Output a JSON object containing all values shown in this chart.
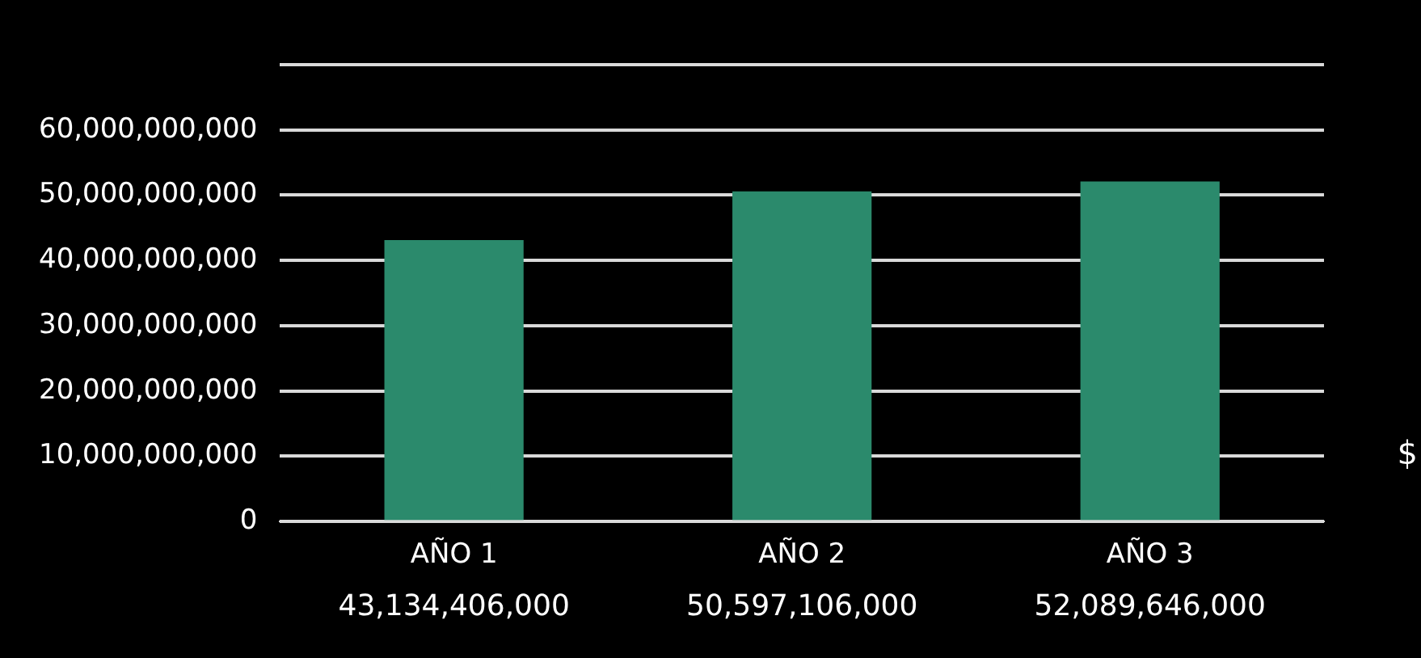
{
  "chart_data": {
    "type": "bar",
    "categories": [
      "AÑO 1",
      "AÑO 2",
      "AÑO 3"
    ],
    "series": [
      {
        "color": "#2b8a6c",
        "values": [
          43134406000,
          50597106000,
          52089646000
        ],
        "value_labels": [
          "43,134,406,000",
          "50,597,106,000",
          "52,089,646,000"
        ]
      }
    ],
    "ylim": [
      0,
      70000000000
    ],
    "yticks": [
      0,
      {
        "value": 10000000000,
        "label": "10,000,000,000"
      },
      {
        "value": 20000000000,
        "label": "20,000,000,000"
      },
      {
        "value": 30000000000,
        "label": "30,000,000,000"
      },
      {
        "value": 40000000000,
        "label": "40,000,000,000"
      },
      {
        "value": 50000000000,
        "label": "50,000,000,000"
      },
      {
        "value": 60000000000,
        "label": "60,000,000,000"
      },
      {
        "value": 70000000000,
        "label": null
      }
    ],
    "grid": "y",
    "annotations": [
      "$"
    ]
  }
}
